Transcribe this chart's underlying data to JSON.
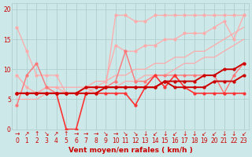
{
  "xlabel": "Vent moyen/en rafales ( km/h )",
  "xlim": [
    -0.5,
    23.5
  ],
  "ylim": [
    0,
    21
  ],
  "xticks": [
    0,
    1,
    2,
    3,
    4,
    5,
    6,
    7,
    8,
    9,
    10,
    11,
    12,
    13,
    14,
    15,
    16,
    17,
    18,
    19,
    20,
    21,
    22,
    23
  ],
  "yticks": [
    0,
    5,
    10,
    15,
    20
  ],
  "background_color": "#cce8e8",
  "grid_color": "#aacccc",
  "lines": [
    {
      "x": [
        0,
        1,
        2,
        3,
        4,
        5,
        6,
        7,
        8,
        9,
        10,
        11,
        12,
        13,
        14,
        15,
        16,
        17,
        18,
        19,
        20,
        21,
        22,
        23
      ],
      "y": [
        17,
        13,
        9,
        9,
        9,
        6,
        6,
        7,
        6,
        7,
        19,
        19,
        18,
        18,
        19,
        19,
        19,
        19,
        19,
        19,
        19,
        19,
        19,
        19
      ],
      "color": "#ffaaaa",
      "lw": 0.9,
      "marker": "o",
      "ms": 2.0,
      "zorder": 2
    },
    {
      "x": [
        0,
        1,
        2,
        3,
        4,
        5,
        6,
        7,
        8,
        9,
        10,
        11,
        12,
        13,
        14,
        15,
        16,
        17,
        18,
        19,
        20,
        21,
        22,
        23
      ],
      "y": [
        9,
        7,
        6,
        7,
        7,
        6,
        6,
        7,
        7,
        8,
        14,
        13,
        13,
        14,
        14,
        15,
        15,
        16,
        16,
        16,
        17,
        18,
        15,
        19
      ],
      "color": "#ffaaaa",
      "lw": 0.9,
      "marker": "o",
      "ms": 2.0,
      "zorder": 2
    },
    {
      "x": [
        0,
        1,
        2,
        3,
        4,
        5,
        6,
        7,
        8,
        9,
        10,
        11,
        12,
        13,
        14,
        15,
        16,
        17,
        18,
        19,
        20,
        21,
        22,
        23
      ],
      "y": [
        6,
        6,
        6,
        7,
        7,
        7,
        7,
        7,
        8,
        8,
        9,
        9,
        10,
        10,
        11,
        11,
        12,
        12,
        13,
        13,
        14,
        15,
        16,
        17
      ],
      "color": "#ffaaaa",
      "lw": 0.9,
      "marker": null,
      "ms": 0,
      "zorder": 2
    },
    {
      "x": [
        0,
        1,
        2,
        3,
        4,
        5,
        6,
        7,
        8,
        9,
        10,
        11,
        12,
        13,
        14,
        15,
        16,
        17,
        18,
        19,
        20,
        21,
        22,
        23
      ],
      "y": [
        5,
        5,
        5,
        6,
        6,
        6,
        6,
        6,
        7,
        7,
        7,
        8,
        8,
        9,
        9,
        9,
        10,
        11,
        11,
        12,
        12,
        13,
        14,
        15
      ],
      "color": "#ffaaaa",
      "lw": 0.9,
      "marker": null,
      "ms": 0,
      "zorder": 2
    },
    {
      "x": [
        0,
        1,
        2,
        3,
        4,
        5,
        6,
        7,
        8,
        9,
        10,
        11,
        12,
        13,
        14,
        15,
        16,
        17,
        18,
        19,
        20,
        21,
        22,
        23
      ],
      "y": [
        4,
        9,
        11,
        7,
        6,
        6,
        6,
        7,
        7,
        7,
        8,
        13,
        8,
        8,
        9,
        9,
        9,
        9,
        9,
        9,
        9,
        6,
        9,
        11
      ],
      "color": "#ff7777",
      "lw": 1.0,
      "marker": "o",
      "ms": 2.0,
      "zorder": 3
    },
    {
      "x": [
        0,
        1,
        2,
        3,
        4,
        5,
        6,
        7,
        8,
        9,
        10,
        11,
        12,
        13,
        14,
        15,
        16,
        17,
        18,
        19,
        20,
        21,
        22,
        23
      ],
      "y": [
        6,
        6,
        6,
        6,
        6,
        0,
        0,
        6,
        6,
        6,
        6,
        6,
        4,
        7,
        9,
        7,
        9,
        7,
        6,
        6,
        6,
        6,
        6,
        6
      ],
      "color": "#ff3333",
      "lw": 1.2,
      "marker": "o",
      "ms": 2.0,
      "zorder": 4
    },
    {
      "x": [
        0,
        1,
        2,
        3,
        4,
        5,
        6,
        7,
        8,
        9,
        10,
        11,
        12,
        13,
        14,
        15,
        16,
        17,
        18,
        19,
        20,
        21,
        22,
        23
      ],
      "y": [
        6,
        6,
        6,
        6,
        6,
        6,
        6,
        7,
        7,
        7,
        7,
        7,
        7,
        7,
        7,
        8,
        7,
        7,
        7,
        7,
        8,
        8,
        8,
        9
      ],
      "color": "#cc0000",
      "lw": 1.4,
      "marker": "o",
      "ms": 2.0,
      "zorder": 5
    },
    {
      "x": [
        0,
        1,
        2,
        3,
        4,
        5,
        6,
        7,
        8,
        9,
        10,
        11,
        12,
        13,
        14,
        15,
        16,
        17,
        18,
        19,
        20,
        21,
        22,
        23
      ],
      "y": [
        6,
        6,
        6,
        6,
        6,
        6,
        6,
        6,
        6,
        7,
        7,
        7,
        7,
        7,
        7,
        8,
        8,
        8,
        8,
        9,
        9,
        10,
        10,
        11
      ],
      "color": "#cc0000",
      "lw": 1.4,
      "marker": "o",
      "ms": 2.0,
      "zorder": 5
    }
  ],
  "arrow_syms": [
    "→",
    "↗",
    "↑",
    "↘",
    "↗",
    "↑",
    "→",
    "→",
    "→",
    "↘",
    "→",
    "↘",
    "↘",
    "↓",
    "↙",
    "↓",
    "↙",
    "↓",
    "↓",
    "↙",
    "↙",
    "↓",
    "↓",
    "↙"
  ],
  "xlabel_color": "#cc0000",
  "tick_color": "#cc0000",
  "label_fontsize": 6.5,
  "tick_fontsize": 5.5
}
